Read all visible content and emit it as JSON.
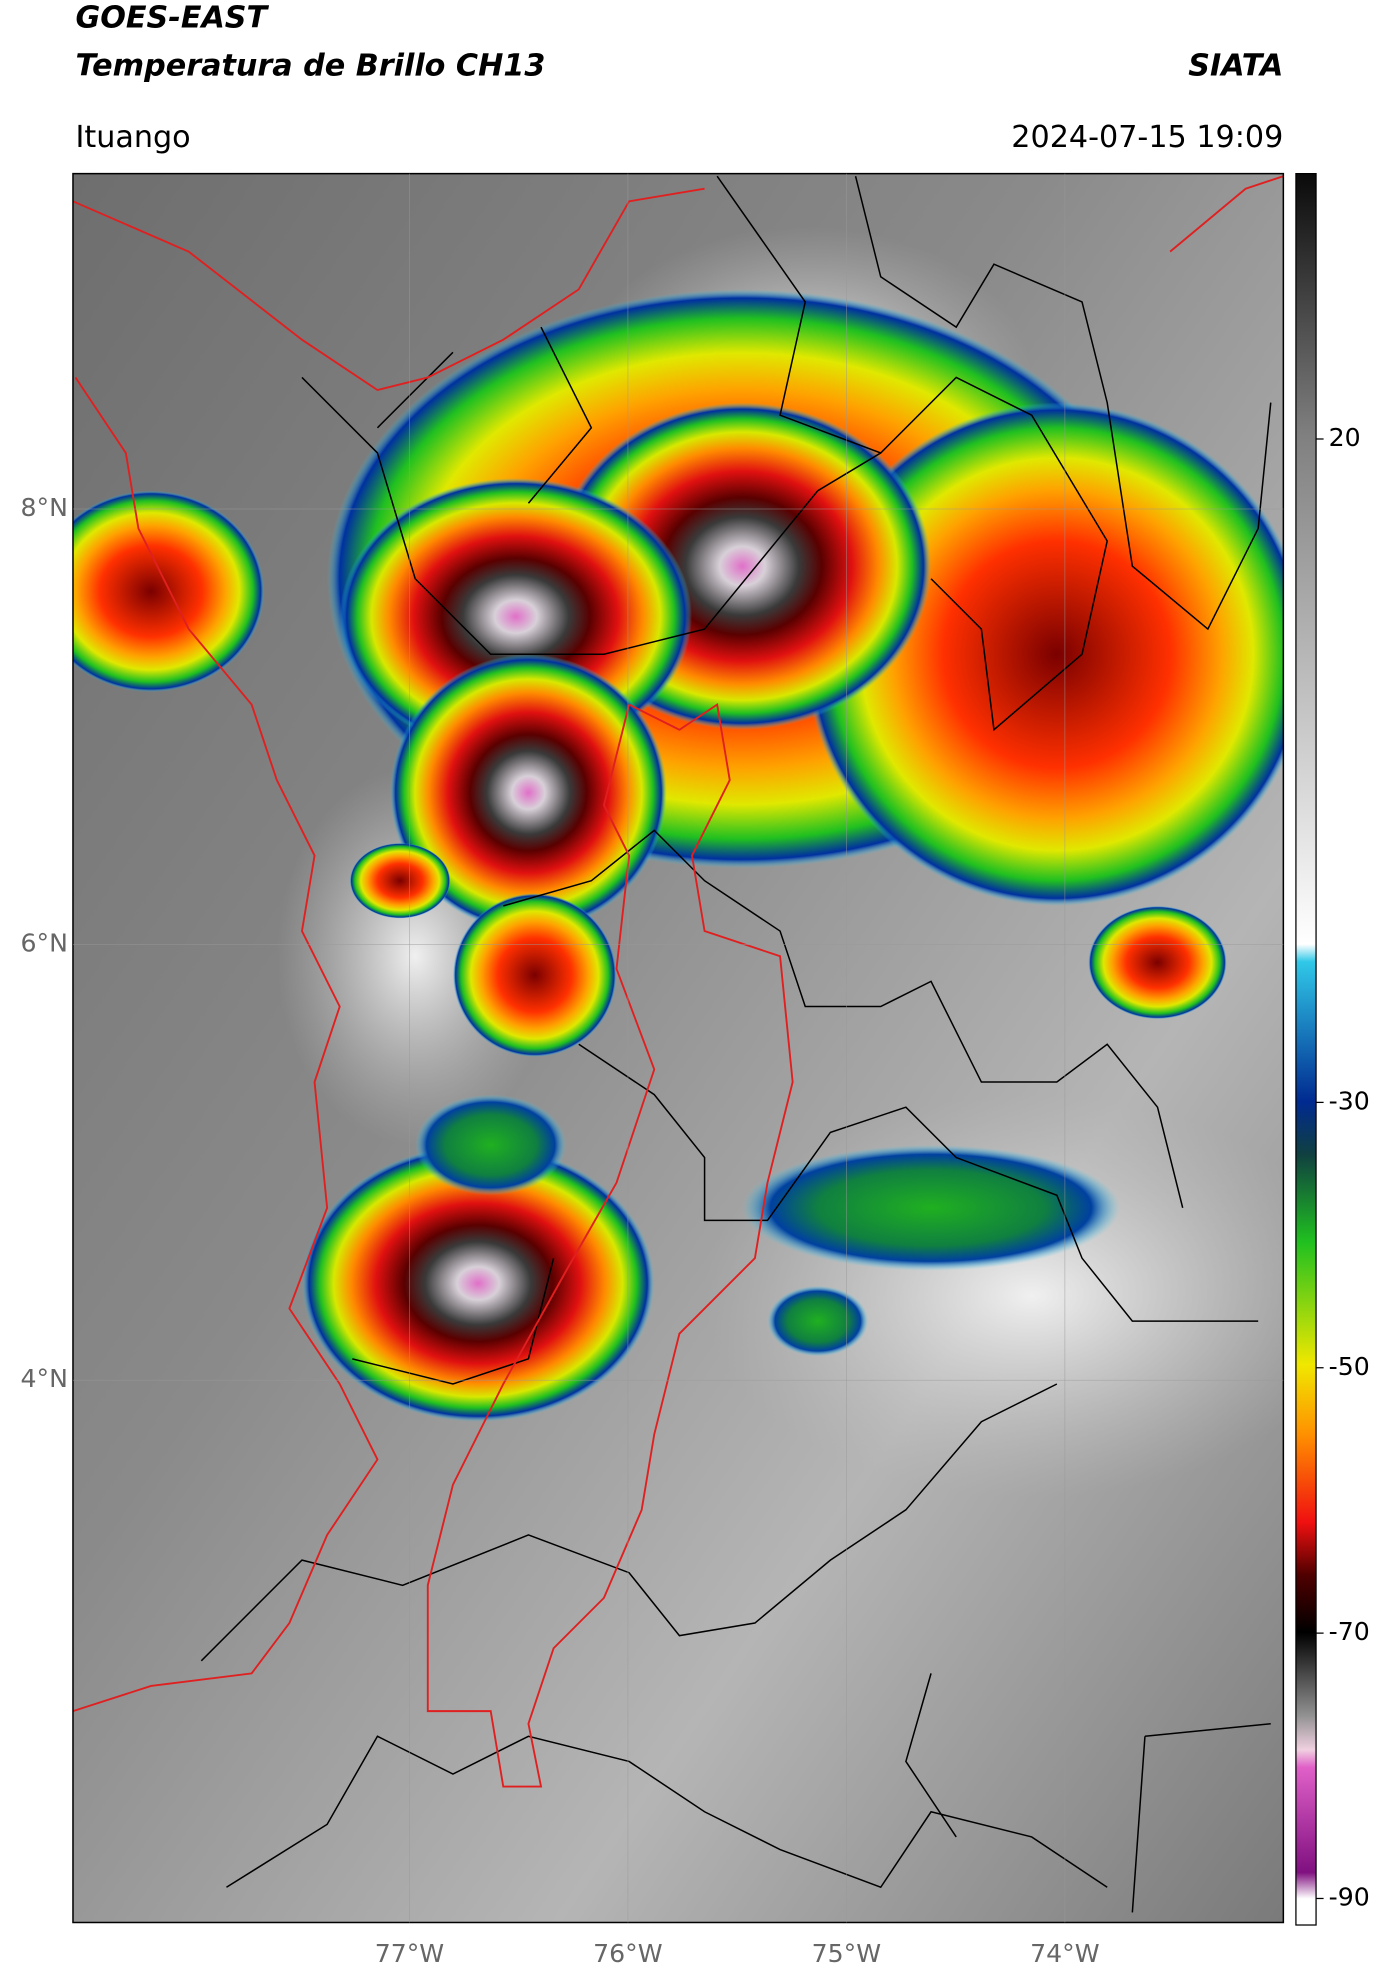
{
  "header": {
    "satellite": "GOES-EAST",
    "product": "Temperatura de Brillo CH13",
    "source": "SIATA",
    "region": "Ituango",
    "datetime": "2024-07-15 19:09"
  },
  "map": {
    "lonlim": [
      -78.54,
      -73.0
    ],
    "latlim": [
      1.51,
      9.54
    ],
    "lat_ticks": [
      {
        "value": 8,
        "label": "8°N"
      },
      {
        "value": 6,
        "label": "6°N"
      },
      {
        "value": 4,
        "label": "4°N"
      }
    ],
    "lon_ticks": [
      {
        "value": -77,
        "label": "77°W"
      },
      {
        "value": -76,
        "label": "76°W"
      },
      {
        "value": -75,
        "label": "75°W"
      },
      {
        "value": -74,
        "label": "74°W"
      }
    ]
  },
  "colorbar": {
    "lim": [
      -92,
      40
    ],
    "ticks": [
      20,
      -30,
      -50,
      -70,
      -90
    ]
  }
}
